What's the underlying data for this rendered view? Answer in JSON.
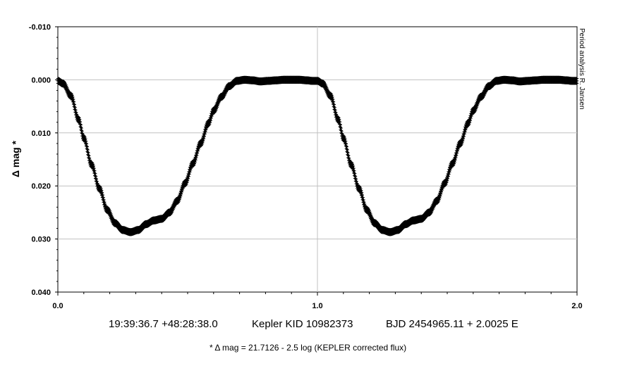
{
  "chart_data": {
    "type": "scatter",
    "title": "",
    "xlabel": "",
    "ylabel": "Δ mag *",
    "xlim": [
      0.0,
      2.0
    ],
    "ylim": [
      -0.01,
      0.04
    ],
    "y_inverted": true,
    "grid": true,
    "x_tick_labels": [
      "0.0",
      "1.0",
      "2.0"
    ],
    "y_tick_labels": [
      "-0.010",
      "0.000",
      "0.010",
      "0.020",
      "0.030",
      "0.040"
    ],
    "marker": "+",
    "marker_color": "#000000",
    "phase_curve": {
      "description_units": "phase (0–1) vs Δ mag, repeated over two cycles",
      "phase": [
        0.0,
        0.02,
        0.05,
        0.08,
        0.1,
        0.13,
        0.16,
        0.19,
        0.22,
        0.25,
        0.28,
        0.31,
        0.34,
        0.37,
        0.4,
        0.43,
        0.46,
        0.49,
        0.52,
        0.55,
        0.58,
        0.6,
        0.63,
        0.66,
        0.69,
        0.72,
        0.75,
        0.78,
        0.81,
        0.84,
        0.87,
        0.9,
        0.93,
        0.96,
        0.98,
        1.0
      ],
      "mag": [
        0.0002,
        0.0007,
        0.003,
        0.0075,
        0.011,
        0.016,
        0.0205,
        0.0245,
        0.027,
        0.0283,
        0.0287,
        0.0283,
        0.0272,
        0.0265,
        0.0262,
        0.025,
        0.0228,
        0.0195,
        0.0158,
        0.012,
        0.0082,
        0.0058,
        0.0032,
        0.0012,
        0.0002,
        0.0,
        0.0001,
        0.0003,
        0.0002,
        0.0001,
        0.0,
        0.0,
        0.0,
        0.0001,
        0.0002,
        0.0002
      ]
    },
    "scatter_width": 0.0009
  },
  "info": {
    "coordinates": "19:39:36.7 +48:28:38.0",
    "kic": "Kepler KID 10982373",
    "ephemeris": "BJD 2454965.11 + 2.0025 E"
  },
  "footnote": "* Δ mag = 21.7126 - 2.5 log (KEPLER corrected flux)",
  "credit": "Period analysis  R. Jansen"
}
